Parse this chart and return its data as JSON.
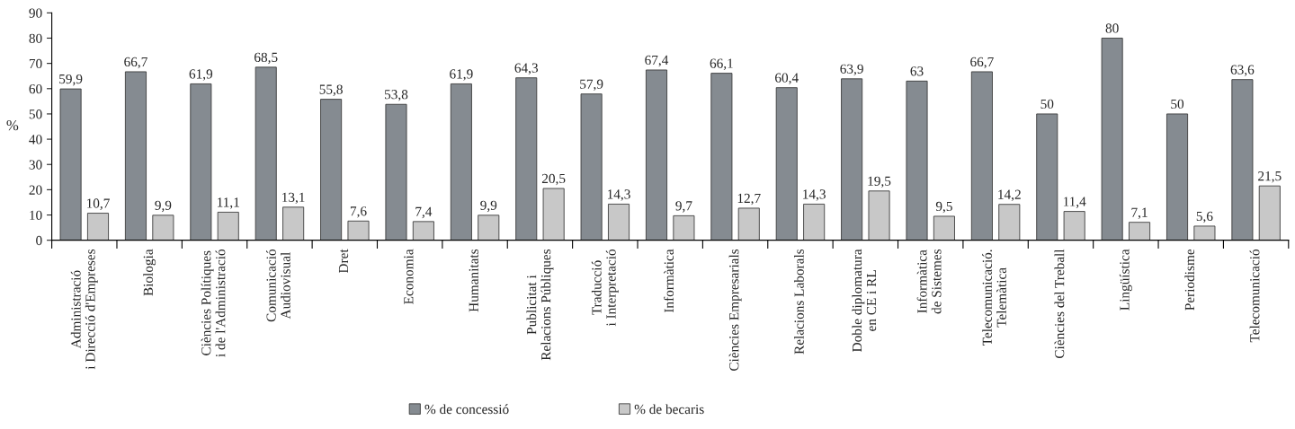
{
  "chart_data": {
    "type": "bar",
    "ylabel": "%",
    "categories": [
      "Administració\ni Direcció d'Empreses",
      "Biologia",
      "Ciències Polítiques\ni de l'Administració",
      "Comunicació\nAudiovisual",
      "Dret",
      "Economia",
      "Humanitats",
      "Publicitat i\nRelacions Públiques",
      "Traducció\ni Interpretació",
      "Informàtica",
      "Ciències Empresarials",
      "Relacions Laborals",
      "Doble diplomatura\nen CE i RL",
      "Informàtica\nde Sistemes",
      "Telecomunicació.\nTelemàtica",
      "Ciències del Treball",
      "Lingüística",
      "Periodisme",
      "Telecomunicació"
    ],
    "series": [
      {
        "name": "% de concessió",
        "color": "#858b91",
        "values": [
          59.9,
          66.7,
          61.9,
          68.5,
          55.8,
          53.8,
          61.9,
          64.3,
          57.9,
          67.4,
          66.1,
          60.4,
          63.9,
          63,
          66.7,
          50,
          80,
          50,
          63.6
        ],
        "value_labels": [
          "59,9",
          "66,7",
          "61,9",
          "68,5",
          "55,8",
          "53,8",
          "61,9",
          "64,3",
          "57,9",
          "67,4",
          "66,1",
          "60,4",
          "63,9",
          "63",
          "66,7",
          "50",
          "80",
          "50",
          "63,6"
        ]
      },
      {
        "name": "% de becaris",
        "color": "#c8c8c8",
        "values": [
          10.7,
          9.9,
          11.1,
          13.1,
          7.6,
          7.4,
          9.9,
          20.5,
          14.3,
          9.7,
          12.7,
          14.3,
          19.5,
          9.5,
          14.2,
          11.4,
          7.1,
          5.6,
          21.5
        ],
        "value_labels": [
          "10,7",
          "9,9",
          "11,1",
          "13,1",
          "7,6",
          "7,4",
          "9,9",
          "20,5",
          "14,3",
          "9,7",
          "12,7",
          "14,3",
          "19,5",
          "9,5",
          "14,2",
          "11,4",
          "7,1",
          "5,6",
          "21,5"
        ]
      }
    ],
    "ylim": [
      0,
      90
    ],
    "yticks": [
      0,
      10,
      20,
      30,
      40,
      50,
      60,
      70,
      80,
      90
    ],
    "grid": false,
    "legend": "bottom"
  }
}
